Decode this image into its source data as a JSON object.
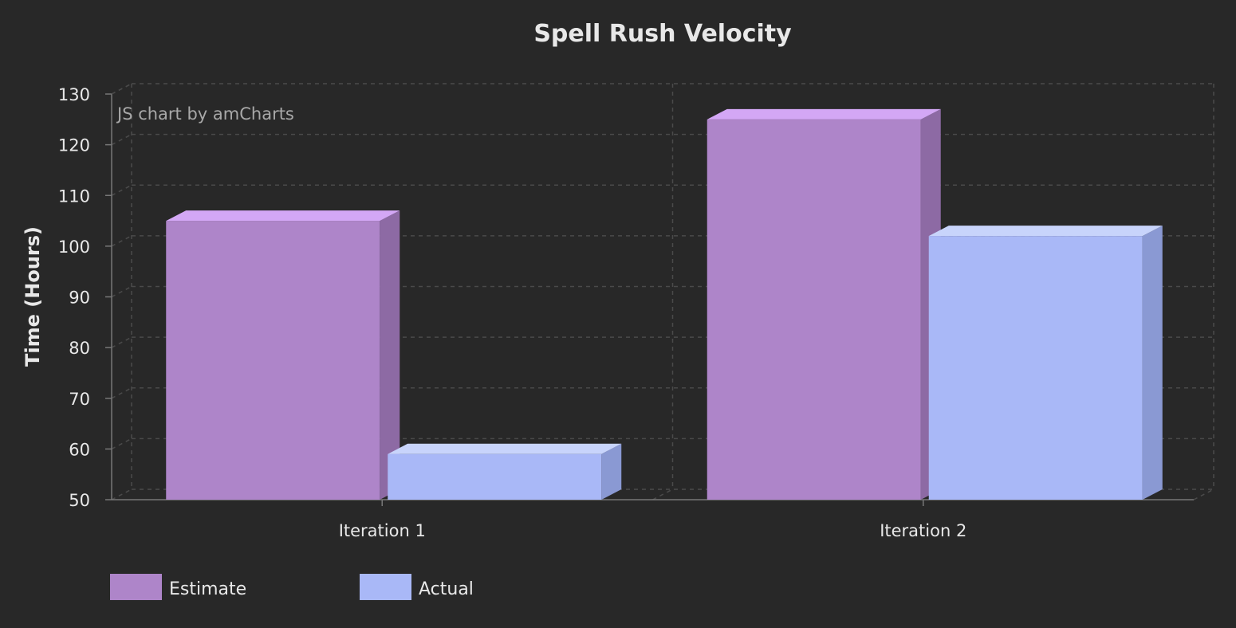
{
  "chart_data": {
    "type": "bar",
    "title": "Spell Rush Velocity",
    "xlabel": "",
    "ylabel": "Time (Hours)",
    "categories": [
      "Iteration 1",
      "Iteration 2"
    ],
    "series": [
      {
        "name": "Estimate",
        "values": [
          105,
          125
        ],
        "color": "#ae85c9",
        "top_color": "#d3a7f5",
        "side_color": "#8d6aa4"
      },
      {
        "name": "Actual",
        "values": [
          59,
          102
        ],
        "color": "#a9b8f7",
        "top_color": "#c8d4fb",
        "side_color": "#8a99d3"
      }
    ],
    "ylim": [
      50,
      130
    ],
    "yticks": [
      50,
      60,
      70,
      80,
      90,
      100,
      110,
      120,
      130
    ],
    "grid": true,
    "legend_position": "bottom-left",
    "three_d": true
  },
  "credit_text": "JS chart by amCharts",
  "colors": {
    "background": "#282828",
    "text": "#e8e8e8",
    "grid": "#4a4a4a",
    "axis": "#777777"
  }
}
